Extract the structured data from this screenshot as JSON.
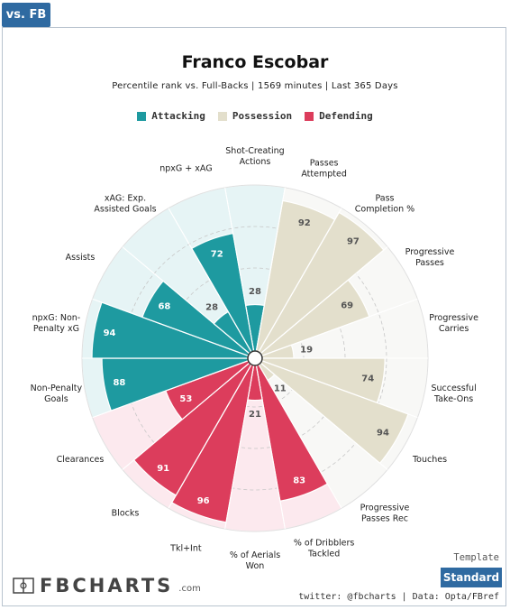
{
  "tab": {
    "label": "vs. FB"
  },
  "header": {
    "title": "Franco Escobar",
    "subtitle": "Percentile rank vs. Full-Backs | 1569 minutes | Last 365 Days"
  },
  "legend": {
    "items": [
      {
        "label": "Attacking",
        "color": "#1e9aa0"
      },
      {
        "label": "Possession",
        "color": "#e3dfcc"
      },
      {
        "label": "Defending",
        "color": "#dc3d5c"
      }
    ]
  },
  "template": {
    "label": "Template",
    "button_label": "Standard"
  },
  "logo": {
    "text": "FBCHARTS",
    "suffix": ".com"
  },
  "credit": "twitter: @fbcharts | Data: Opta/FBref",
  "chart_data": {
    "type": "pizza",
    "range": [
      0,
      100
    ],
    "series": [
      {
        "name": "Attacking",
        "color": "#1e9aa0",
        "bg": "#e6f4f5"
      },
      {
        "name": "Possession",
        "color": "#e3dfcc",
        "bg": "#f8f8f6"
      },
      {
        "name": "Defending",
        "color": "#dc3d5c",
        "bg": "#fce9ee"
      }
    ],
    "categories": [
      {
        "label": "Shot-Creating\nActions",
        "value": 28,
        "group": "Attacking"
      },
      {
        "label": "Passes\nAttempted",
        "value": 92,
        "group": "Possession"
      },
      {
        "label": "Pass\nCompletion %",
        "value": 97,
        "group": "Possession"
      },
      {
        "label": "Progressive\nPasses",
        "value": 69,
        "group": "Possession"
      },
      {
        "label": "Progressive\nCarries",
        "value": 19,
        "group": "Possession"
      },
      {
        "label": "Successful\nTake-Ons",
        "value": 74,
        "group": "Possession"
      },
      {
        "label": "Touches",
        "value": 94,
        "group": "Possession"
      },
      {
        "label": "Progressive\nPasses Rec",
        "value": 11,
        "group": "Possession"
      },
      {
        "label": "% of Dribblers\nTackled",
        "value": 83,
        "group": "Defending"
      },
      {
        "label": "% of Aerials\nWon",
        "value": 21,
        "group": "Defending"
      },
      {
        "label": "Tkl+Int",
        "value": 96,
        "group": "Defending"
      },
      {
        "label": "Blocks",
        "value": 91,
        "group": "Defending"
      },
      {
        "label": "Clearances",
        "value": 53,
        "group": "Defending"
      },
      {
        "label": "Non-Penalty\nGoals",
        "value": 88,
        "group": "Attacking"
      },
      {
        "label": "npxG: Non-\nPenalty xG",
        "value": 94,
        "group": "Attacking"
      },
      {
        "label": "Assists",
        "value": 68,
        "group": "Attacking"
      },
      {
        "label": "xAG: Exp.\nAssisted Goals",
        "value": 28,
        "group": "Attacking"
      },
      {
        "label": "npxG + xAG",
        "value": 72,
        "group": "Attacking"
      }
    ]
  }
}
